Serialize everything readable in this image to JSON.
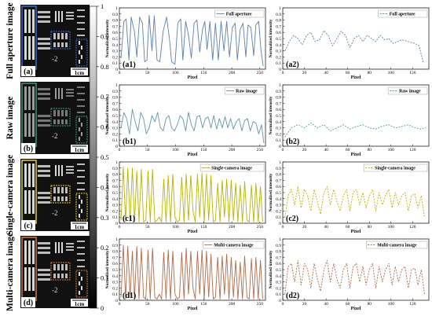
{
  "row_labels": [
    "Full aperture image",
    "Raw image",
    "Single-camera image",
    "Multi-camera image"
  ],
  "image_letters": [
    "(a)",
    "(b)",
    "(c)",
    "(d)"
  ],
  "scale_bar_label": "1cm",
  "target_label": "-2",
  "colorbar": {
    "ticks": [
      "1",
      "0.9",
      "0.8",
      "0.7",
      "0.6",
      "0.5",
      "0.4",
      "0.3",
      "0.2",
      "0.1",
      "0"
    ],
    "values": [
      1,
      0.9,
      0.8,
      0.7,
      0.6,
      0.5,
      0.4,
      0.3,
      0.2,
      0.1,
      0
    ]
  },
  "colors": {
    "full": "#5a7fb0",
    "raw": "#5f93b3",
    "single": "#b8b400",
    "multi": "#b06a4a",
    "box_full": "#3f6bd1",
    "box_raw": "#3d9b77",
    "box_single": "#e3cf2c",
    "box_multi": "#d07a43"
  },
  "chart_data": [
    {
      "type": "line",
      "panel": "(a1)",
      "ylabel": "Normalized intensity",
      "xlabel": "Pixel",
      "legend": "Full aperture",
      "line_style": "solid",
      "color_key": "full",
      "xlim": [
        0,
        260
      ],
      "ylim": [
        0,
        1
      ],
      "xticks": [
        0,
        50,
        100,
        150,
        200,
        250
      ],
      "yticks": [
        0,
        0.1,
        0.2,
        0.3,
        0.4,
        0.5,
        0.6,
        0.7,
        0.8,
        0.9,
        1
      ],
      "x": [
        3,
        8,
        12,
        17,
        21,
        27,
        31,
        36,
        41,
        45,
        49,
        53,
        58,
        62,
        67,
        72,
        78,
        84,
        89,
        93,
        99,
        104,
        109,
        113,
        118,
        123,
        128,
        133,
        138,
        143,
        148,
        152,
        156,
        161,
        166,
        171,
        176,
        181,
        186,
        191,
        196,
        201,
        206,
        210,
        215,
        220,
        225,
        229,
        234,
        239,
        243,
        248,
        252,
        256
      ],
      "y": [
        0.18,
        0.78,
        0.82,
        0.15,
        0.85,
        0.6,
        0.2,
        0.85,
        0.75,
        0.12,
        0.15,
        0.88,
        0.3,
        0.87,
        0.15,
        0.12,
        0.62,
        0.85,
        0.5,
        0.12,
        0.08,
        0.75,
        0.82,
        0.15,
        0.78,
        0.55,
        0.18,
        0.75,
        0.8,
        0.28,
        0.65,
        0.78,
        0.32,
        0.78,
        0.15,
        0.75,
        0.15,
        0.78,
        0.3,
        0.78,
        0.2,
        0.68,
        0.75,
        0.15,
        0.65,
        0.75,
        0.2,
        0.72,
        0.68,
        0.22,
        0.72,
        0.78,
        0.3,
        0.05
      ]
    },
    {
      "type": "line",
      "panel": "(a2)",
      "ylabel": "Normalized intensity",
      "xlabel": "Pixel",
      "legend": "Full aperture",
      "line_style": "dashed",
      "color_key": "full",
      "xlim": [
        0,
        135
      ],
      "ylim": [
        0,
        1
      ],
      "xticks": [
        0,
        20,
        40,
        60,
        80,
        100,
        120
      ],
      "yticks": [
        0,
        0.1,
        0.2,
        0.3,
        0.4,
        0.5,
        0.6,
        0.7,
        0.8,
        0.9,
        1
      ],
      "x": [
        2,
        6,
        10,
        14,
        18,
        22,
        26,
        30,
        34,
        38,
        42,
        46,
        50,
        54,
        58,
        62,
        66,
        70,
        74,
        78,
        82,
        86,
        90,
        94,
        98,
        102,
        106,
        110,
        114,
        118,
        122,
        126,
        130
      ],
      "y": [
        0.3,
        0.45,
        0.55,
        0.5,
        0.4,
        0.55,
        0.6,
        0.45,
        0.48,
        0.63,
        0.55,
        0.38,
        0.5,
        0.62,
        0.55,
        0.35,
        0.5,
        0.55,
        0.45,
        0.55,
        0.5,
        0.45,
        0.55,
        0.48,
        0.5,
        0.42,
        0.45,
        0.48,
        0.46,
        0.44,
        0.42,
        0.38,
        0.1
      ]
    },
    {
      "type": "line",
      "panel": "(b1)",
      "ylabel": "Normalized intensity",
      "xlabel": "Pixel",
      "legend": "Raw image",
      "line_style": "solid",
      "color_key": "raw",
      "xlim": [
        0,
        260
      ],
      "ylim": [
        0,
        1
      ],
      "xticks": [
        0,
        50,
        100,
        150,
        200,
        250
      ],
      "yticks": [
        0,
        0.1,
        0.2,
        0.3,
        0.4,
        0.5,
        0.6,
        0.7,
        0.8,
        0.9,
        1
      ],
      "x": [
        3,
        8,
        13,
        18,
        23,
        28,
        33,
        38,
        43,
        48,
        53,
        58,
        63,
        68,
        73,
        78,
        83,
        88,
        93,
        98,
        103,
        108,
        113,
        118,
        123,
        128,
        133,
        138,
        143,
        148,
        153,
        158,
        163,
        168,
        173,
        178,
        183,
        188,
        193,
        198,
        203,
        208,
        213,
        218,
        223,
        228,
        233,
        238,
        243,
        248,
        253,
        257
      ],
      "y": [
        0.3,
        0.55,
        0.45,
        0.2,
        0.6,
        0.4,
        0.25,
        0.55,
        0.45,
        0.2,
        0.3,
        0.5,
        0.4,
        0.55,
        0.3,
        0.25,
        0.45,
        0.5,
        0.3,
        0.25,
        0.35,
        0.5,
        0.45,
        0.25,
        0.55,
        0.35,
        0.25,
        0.48,
        0.5,
        0.3,
        0.45,
        0.48,
        0.3,
        0.5,
        0.28,
        0.45,
        0.3,
        0.48,
        0.3,
        0.45,
        0.28,
        0.4,
        0.45,
        0.25,
        0.42,
        0.45,
        0.25,
        0.4,
        0.38,
        0.2,
        0.35,
        0.05
      ]
    },
    {
      "type": "line",
      "panel": "(b2)",
      "ylabel": "Normalized intensity",
      "xlabel": "Pixel",
      "legend": "Raw image",
      "line_style": "dashed",
      "color_key": "raw",
      "xlim": [
        0,
        135
      ],
      "ylim": [
        0,
        1
      ],
      "xticks": [
        0,
        20,
        40,
        60,
        80,
        100,
        120
      ],
      "yticks": [
        0,
        0.1,
        0.2,
        0.3,
        0.4,
        0.5,
        0.6,
        0.7,
        0.8,
        0.9,
        1
      ],
      "x": [
        2,
        8,
        14,
        20,
        26,
        32,
        38,
        44,
        50,
        56,
        62,
        68,
        74,
        80,
        86,
        92,
        98,
        104,
        110,
        116,
        122,
        128,
        132
      ],
      "y": [
        0.15,
        0.3,
        0.35,
        0.3,
        0.38,
        0.3,
        0.35,
        0.25,
        0.3,
        0.35,
        0.28,
        0.32,
        0.35,
        0.3,
        0.28,
        0.33,
        0.35,
        0.3,
        0.32,
        0.35,
        0.3,
        0.28,
        0.3
      ]
    },
    {
      "type": "line",
      "panel": "(c1)",
      "ylabel": "Normalized intensity",
      "xlabel": "Pixel",
      "legend": "Single-camera image",
      "line_style": "solid",
      "color_key": "single",
      "xlim": [
        0,
        260
      ],
      "ylim": [
        0,
        1
      ],
      "xticks": [
        0,
        50,
        100,
        150,
        200,
        250
      ],
      "yticks": [
        0,
        0.1,
        0.2,
        0.3,
        0.4,
        0.5,
        0.6,
        0.7,
        0.8,
        0.9,
        1
      ],
      "x": [
        3,
        7,
        11,
        15,
        19,
        23,
        27,
        31,
        35,
        39,
        43,
        47,
        51,
        55,
        59,
        63,
        67,
        71,
        75,
        79,
        83,
        87,
        91,
        95,
        99,
        103,
        107,
        111,
        115,
        119,
        123,
        127,
        131,
        135,
        139,
        143,
        147,
        151,
        155,
        159,
        163,
        167,
        171,
        175,
        179,
        183,
        187,
        191,
        195,
        199,
        203,
        207,
        211,
        215,
        219,
        223,
        227,
        231,
        235,
        239,
        243,
        247,
        251,
        255
      ],
      "y": [
        0.05,
        0.92,
        0.02,
        0.9,
        0.02,
        0.9,
        0.02,
        0.85,
        0.02,
        0.88,
        0.02,
        0.05,
        0.85,
        0.02,
        0.88,
        0.02,
        0.05,
        0.1,
        0.02,
        0.72,
        0.02,
        0.78,
        0.02,
        0.8,
        0.1,
        0.02,
        0.05,
        0.75,
        0.02,
        0.8,
        0.05,
        0.78,
        0.2,
        0.02,
        0.8,
        0.1,
        0.82,
        0.02,
        0.8,
        0.05,
        0.78,
        0.02,
        0.05,
        0.65,
        0.02,
        0.7,
        0.1,
        0.72,
        0.02,
        0.7,
        0.05,
        0.65,
        0.02,
        0.62,
        0.02,
        0.68,
        0.05,
        0.02,
        0.62,
        0.02,
        0.65,
        0.02,
        0.6,
        0.02
      ]
    },
    {
      "type": "line",
      "panel": "(c2)",
      "ylabel": "Normalized intensity",
      "xlabel": "Pixel",
      "legend": "Single-camera image",
      "line_style": "dashed",
      "color_key": "single",
      "xlim": [
        0,
        135
      ],
      "ylim": [
        0,
        1
      ],
      "xticks": [
        0,
        20,
        40,
        60,
        80,
        100,
        120
      ],
      "yticks": [
        0,
        0.1,
        0.2,
        0.3,
        0.4,
        0.5,
        0.6,
        0.7,
        0.8,
        0.9,
        1
      ],
      "x": [
        2,
        5,
        8,
        11,
        14,
        17,
        20,
        23,
        26,
        29,
        32,
        35,
        38,
        41,
        44,
        47,
        50,
        53,
        56,
        59,
        62,
        65,
        68,
        71,
        74,
        77,
        80,
        83,
        86,
        89,
        92,
        95,
        98,
        101,
        104,
        107,
        110,
        113,
        116,
        119,
        122,
        125,
        128,
        131
      ],
      "y": [
        0.1,
        0.45,
        0.55,
        0.3,
        0.6,
        0.25,
        0.55,
        0.45,
        0.2,
        0.55,
        0.35,
        0.15,
        0.5,
        0.6,
        0.3,
        0.55,
        0.35,
        0.2,
        0.45,
        0.55,
        0.2,
        0.5,
        0.55,
        0.3,
        0.5,
        0.25,
        0.45,
        0.55,
        0.2,
        0.5,
        0.3,
        0.45,
        0.55,
        0.25,
        0.5,
        0.3,
        0.45,
        0.5,
        0.2,
        0.45,
        0.48,
        0.25,
        0.45,
        0.1
      ]
    },
    {
      "type": "line",
      "panel": "(d1)",
      "ylabel": "Normalized intensity",
      "xlabel": "Pixel",
      "legend": "Multi-camera image",
      "line_style": "solid",
      "color_key": "multi",
      "xlim": [
        0,
        260
      ],
      "ylim": [
        0,
        1
      ],
      "xticks": [
        0,
        50,
        100,
        150,
        200,
        250
      ],
      "yticks": [
        0,
        0.1,
        0.2,
        0.3,
        0.4,
        0.5,
        0.6,
        0.7,
        0.8,
        0.9,
        1
      ],
      "x": [
        3,
        7,
        11,
        15,
        19,
        23,
        27,
        31,
        35,
        39,
        43,
        47,
        51,
        55,
        59,
        63,
        67,
        71,
        75,
        79,
        83,
        87,
        91,
        95,
        99,
        103,
        107,
        111,
        115,
        119,
        123,
        127,
        131,
        135,
        139,
        143,
        147,
        151,
        155,
        159,
        163,
        167,
        171,
        175,
        179,
        183,
        187,
        191,
        195,
        199,
        203,
        207,
        211,
        215,
        219,
        223,
        227,
        231,
        235,
        239,
        243,
        247,
        251,
        255
      ],
      "y": [
        0.05,
        0.9,
        0.02,
        0.88,
        0.05,
        0.8,
        0.02,
        0.88,
        0.02,
        0.85,
        0.05,
        0.02,
        0.82,
        0.02,
        0.85,
        0.05,
        0.02,
        0.1,
        0.02,
        0.78,
        0.02,
        0.82,
        0.02,
        0.8,
        0.1,
        0.02,
        0.05,
        0.78,
        0.02,
        0.85,
        0.1,
        0.8,
        0.2,
        0.02,
        0.8,
        0.1,
        0.82,
        0.02,
        0.8,
        0.05,
        0.75,
        0.02,
        0.05,
        0.7,
        0.02,
        0.72,
        0.1,
        0.75,
        0.02,
        0.7,
        0.05,
        0.65,
        0.02,
        0.62,
        0.02,
        0.72,
        0.05,
        0.02,
        0.68,
        0.02,
        0.7,
        0.02,
        0.65,
        0.02
      ]
    },
    {
      "type": "line",
      "panel": "(d2)",
      "ylabel": "Normalized intensity",
      "xlabel": "Pixel",
      "legend": "Multi-camera image",
      "line_style": "dashed",
      "color_key": "multi",
      "xlim": [
        0,
        135
      ],
      "ylim": [
        0,
        1
      ],
      "xticks": [
        0,
        20,
        40,
        60,
        80,
        100,
        120
      ],
      "yticks": [
        0,
        0.1,
        0.2,
        0.3,
        0.4,
        0.5,
        0.6,
        0.7,
        0.8,
        0.9,
        1
      ],
      "x": [
        2,
        5,
        8,
        11,
        14,
        17,
        20,
        23,
        26,
        29,
        32,
        35,
        38,
        41,
        44,
        47,
        50,
        53,
        56,
        59,
        62,
        65,
        68,
        71,
        74,
        77,
        80,
        83,
        86,
        89,
        92,
        95,
        98,
        101,
        104,
        107,
        110,
        113,
        116,
        119,
        122,
        125,
        128,
        131
      ],
      "y": [
        0.1,
        0.55,
        0.6,
        0.3,
        0.65,
        0.25,
        0.6,
        0.5,
        0.2,
        0.6,
        0.35,
        0.15,
        0.5,
        0.65,
        0.3,
        0.6,
        0.35,
        0.2,
        0.5,
        0.6,
        0.2,
        0.55,
        0.6,
        0.3,
        0.55,
        0.25,
        0.5,
        0.6,
        0.2,
        0.55,
        0.3,
        0.5,
        0.6,
        0.25,
        0.55,
        0.3,
        0.5,
        0.55,
        0.2,
        0.5,
        0.52,
        0.25,
        0.5,
        0.1
      ]
    }
  ]
}
